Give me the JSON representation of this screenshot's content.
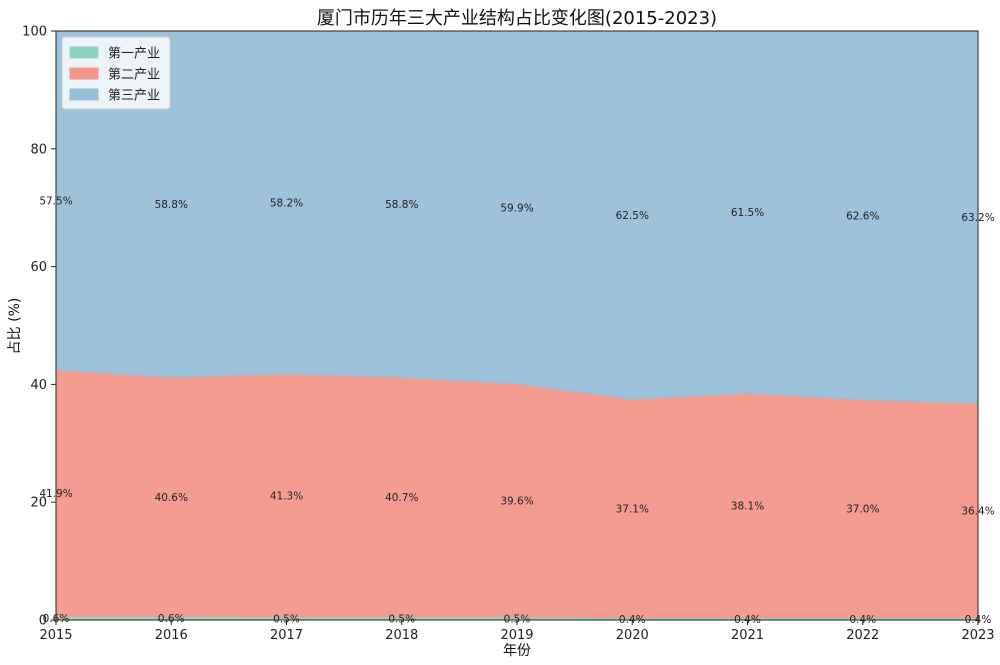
{
  "chart_data": {
    "type": "area",
    "stacked": true,
    "title": "厦门市历年三大产业结构占比变化图(2015-2023)",
    "xlabel": "年份",
    "ylabel": "占比 (%)",
    "categories": [
      "2015",
      "2016",
      "2017",
      "2018",
      "2019",
      "2020",
      "2021",
      "2022",
      "2023"
    ],
    "ylim": [
      0,
      100
    ],
    "yticks": [
      "0",
      "20",
      "40",
      "60",
      "80",
      "100"
    ],
    "series": [
      {
        "name": "第一产业",
        "color": "#8fd3c1",
        "values": [
          0.6,
          0.6,
          0.5,
          0.5,
          0.5,
          0.4,
          0.4,
          0.4,
          0.4
        ],
        "labels": [
          "0.6%",
          "0.6%",
          "0.5%",
          "0.5%",
          "0.5%",
          "0.4%",
          "0.4%",
          "0.4%",
          "0.4%"
        ]
      },
      {
        "name": "第二产业",
        "color": "#f4978a",
        "values": [
          41.9,
          40.6,
          41.3,
          40.7,
          39.6,
          37.1,
          38.1,
          37.0,
          36.4
        ],
        "labels": [
          "41.9%",
          "40.6%",
          "41.3%",
          "40.7%",
          "39.6%",
          "37.1%",
          "38.1%",
          "37.0%",
          "36.4%"
        ]
      },
      {
        "name": "第三产业",
        "color": "#98bfd8",
        "values": [
          57.5,
          58.8,
          58.2,
          58.8,
          59.9,
          62.5,
          61.5,
          62.6,
          63.2
        ],
        "labels": [
          "57.5%",
          "58.8%",
          "58.2%",
          "58.8%",
          "59.9%",
          "62.5%",
          "61.5%",
          "62.6%",
          "63.2%"
        ]
      }
    ],
    "legend_position": "top-left",
    "grid": false
  }
}
